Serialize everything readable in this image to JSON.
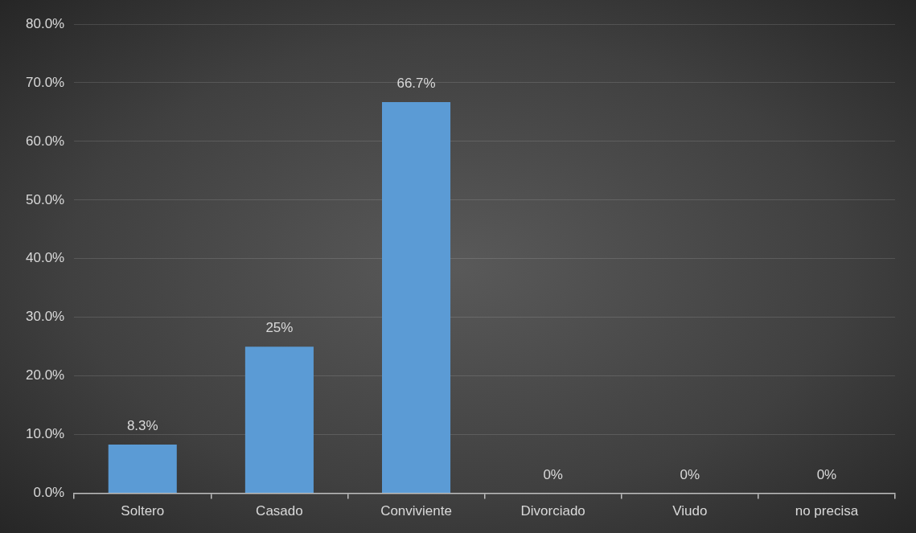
{
  "chart_data": {
    "type": "bar",
    "categories": [
      "Soltero",
      "Casado",
      "Conviviente",
      "Divorciado",
      "Viudo",
      "no precisa"
    ],
    "values": [
      8.3,
      25,
      66.7,
      0,
      0,
      0
    ],
    "value_labels": [
      "8.3%",
      "25%",
      "66.7%",
      "0%",
      "0%",
      "0%"
    ],
    "color": "#5b9bd5",
    "ylim": [
      0,
      80
    ],
    "yticks": [
      {
        "value": 0,
        "label": "0.0%"
      },
      {
        "value": 10,
        "label": "10.0%"
      },
      {
        "value": 20,
        "label": "20.0%"
      },
      {
        "value": 30,
        "label": "30.0%"
      },
      {
        "value": 40,
        "label": "40.0%"
      },
      {
        "value": 50,
        "label": "50.0%"
      },
      {
        "value": 60,
        "label": "60.0%"
      },
      {
        "value": 70,
        "label": "70.0%"
      },
      {
        "value": 80,
        "label": "80.0%"
      }
    ],
    "grid": "y",
    "legend": false
  }
}
